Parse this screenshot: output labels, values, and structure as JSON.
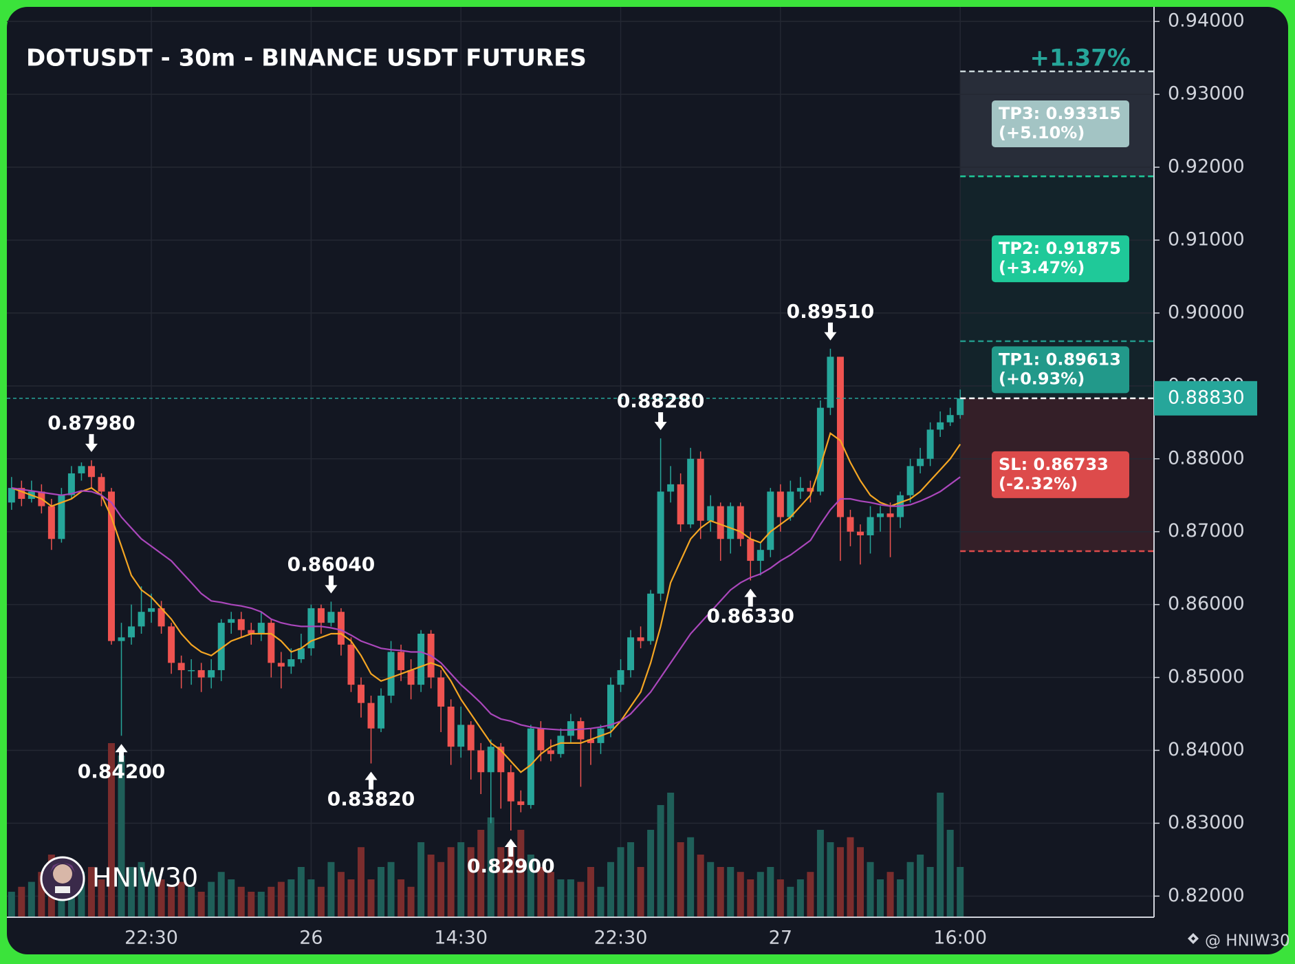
{
  "chart_data": {
    "type": "candlestick",
    "title": "DOTUSDT - 30m - BINANCE USDT FUTURES",
    "categories": [
      null,
      null,
      null,
      null,
      null,
      null,
      null,
      null,
      null,
      null,
      null,
      null,
      null,
      null,
      "22:30",
      null,
      null,
      null,
      null,
      null,
      null,
      null,
      null,
      null,
      null,
      null,
      null,
      null,
      null,
      null,
      "26",
      null,
      null,
      null,
      null,
      null,
      null,
      null,
      null,
      null,
      null,
      null,
      null,
      null,
      null,
      "14:30",
      null,
      null,
      null,
      null,
      null,
      null,
      null,
      null,
      null,
      null,
      null,
      null,
      null,
      null,
      null,
      "22:30",
      null,
      null,
      null,
      null,
      null,
      null,
      null,
      null,
      null,
      null,
      null,
      null,
      null,
      null,
      null,
      "27",
      null,
      null,
      null,
      null,
      null,
      null,
      null,
      null,
      null,
      null,
      null,
      null,
      null,
      null,
      null,
      null,
      null,
      "16:00"
    ],
    "open": [
      0.874,
      0.876,
      0.8745,
      0.8755,
      0.8735,
      0.869,
      0.875,
      0.878,
      0.879,
      0.8775,
      0.8755,
      0.855,
      0.8555,
      0.857,
      0.859,
      0.8595,
      0.857,
      0.852,
      0.851,
      0.851,
      0.85,
      0.851,
      0.8575,
      0.858,
      0.8565,
      0.856,
      0.8575,
      0.852,
      0.8515,
      0.8525,
      0.854,
      0.8595,
      0.8575,
      0.859,
      0.8545,
      0.849,
      0.8465,
      0.843,
      0.8475,
      0.8535,
      0.851,
      0.849,
      0.856,
      0.85,
      0.846,
      0.8405,
      0.8435,
      0.84,
      0.837,
      0.8405,
      0.837,
      0.833,
      0.8325,
      0.843,
      0.84,
      0.8395,
      0.842,
      0.844,
      0.8415,
      0.841,
      0.843,
      0.849,
      0.851,
      0.8555,
      0.855,
      0.8615,
      0.8755,
      0.8765,
      0.871,
      0.88,
      0.8715,
      0.8735,
      0.869,
      0.8735,
      0.869,
      0.866,
      0.8675,
      0.8755,
      0.872,
      0.8755,
      0.876,
      0.8755,
      0.887,
      0.894,
      0.872,
      0.87,
      0.8695,
      0.872,
      0.8725,
      0.872,
      0.875,
      0.879,
      0.88,
      0.884,
      0.885,
      0.886
    ],
    "high": [
      0.8775,
      0.877,
      0.877,
      0.8765,
      0.8745,
      0.876,
      0.879,
      0.8795,
      0.8798,
      0.878,
      0.876,
      0.8575,
      0.86,
      0.8625,
      0.8615,
      0.8605,
      0.8575,
      0.853,
      0.8525,
      0.852,
      0.8525,
      0.858,
      0.859,
      0.859,
      0.8575,
      0.859,
      0.858,
      0.8535,
      0.854,
      0.856,
      0.86,
      0.86,
      0.8604,
      0.8595,
      0.8555,
      0.85,
      0.8475,
      0.8485,
      0.855,
      0.8545,
      0.8525,
      0.8565,
      0.8565,
      0.851,
      0.847,
      0.846,
      0.844,
      0.841,
      0.8415,
      0.841,
      0.838,
      0.8345,
      0.8435,
      0.844,
      0.8415,
      0.843,
      0.845,
      0.8445,
      0.843,
      0.8435,
      0.85,
      0.8525,
      0.8565,
      0.857,
      0.862,
      0.8828,
      0.879,
      0.878,
      0.8815,
      0.881,
      0.875,
      0.874,
      0.874,
      0.874,
      0.87,
      0.8685,
      0.876,
      0.8765,
      0.877,
      0.8775,
      0.877,
      0.888,
      0.8951,
      0.894,
      0.873,
      0.871,
      0.8735,
      0.8735,
      0.874,
      0.8755,
      0.88,
      0.8815,
      0.885,
      0.8865,
      0.887,
      0.8895
    ],
    "low": [
      0.873,
      0.8735,
      0.874,
      0.8725,
      0.8675,
      0.8685,
      0.8745,
      0.877,
      0.876,
      0.8735,
      0.8545,
      0.842,
      0.8545,
      0.856,
      0.8575,
      0.856,
      0.8505,
      0.8485,
      0.849,
      0.848,
      0.8485,
      0.8495,
      0.856,
      0.8555,
      0.8545,
      0.855,
      0.85,
      0.8485,
      0.8505,
      0.852,
      0.853,
      0.856,
      0.857,
      0.853,
      0.848,
      0.8445,
      0.8382,
      0.8425,
      0.8465,
      0.8495,
      0.847,
      0.848,
      0.8485,
      0.8425,
      0.838,
      0.839,
      0.836,
      0.834,
      0.83,
      0.832,
      0.829,
      0.8315,
      0.832,
      0.8385,
      0.8385,
      0.839,
      0.841,
      0.835,
      0.838,
      0.8395,
      0.8418,
      0.848,
      0.85,
      0.854,
      0.8545,
      0.8605,
      0.874,
      0.87,
      0.8705,
      0.869,
      0.87,
      0.866,
      0.867,
      0.868,
      0.8633,
      0.864,
      0.8665,
      0.87,
      0.8715,
      0.8745,
      0.874,
      0.875,
      0.886,
      0.866,
      0.868,
      0.8655,
      0.867,
      0.87,
      0.8665,
      0.8705,
      0.874,
      0.878,
      0.879,
      0.883,
      0.8845,
      0.8855
    ],
    "close": [
      0.876,
      0.8745,
      0.8755,
      0.8735,
      0.869,
      0.875,
      0.878,
      0.879,
      0.8775,
      0.8755,
      0.855,
      0.8555,
      0.857,
      0.859,
      0.8595,
      0.857,
      0.852,
      0.851,
      0.851,
      0.85,
      0.851,
      0.8575,
      0.858,
      0.8565,
      0.856,
      0.8575,
      0.852,
      0.8515,
      0.8525,
      0.854,
      0.8595,
      0.8575,
      0.859,
      0.8545,
      0.849,
      0.8465,
      0.843,
      0.8475,
      0.8535,
      0.851,
      0.849,
      0.856,
      0.85,
      0.846,
      0.8405,
      0.8435,
      0.84,
      0.837,
      0.8405,
      0.837,
      0.833,
      0.8325,
      0.843,
      0.84,
      0.8395,
      0.842,
      0.844,
      0.8415,
      0.841,
      0.843,
      0.849,
      0.851,
      0.8555,
      0.855,
      0.8615,
      0.8755,
      0.8765,
      0.871,
      0.88,
      0.8715,
      0.8735,
      0.869,
      0.8735,
      0.869,
      0.866,
      0.8675,
      0.8755,
      0.872,
      0.8755,
      0.876,
      0.8755,
      0.887,
      0.894,
      0.872,
      0.87,
      0.8695,
      0.872,
      0.8725,
      0.872,
      0.875,
      0.879,
      0.88,
      0.884,
      0.885,
      0.886,
      0.8883
    ],
    "volume": [
      10,
      12,
      14,
      18,
      25,
      15,
      12,
      18,
      20,
      15,
      70,
      65,
      20,
      22,
      18,
      15,
      12,
      14,
      12,
      10,
      14,
      18,
      15,
      12,
      10,
      10,
      12,
      14,
      15,
      20,
      15,
      12,
      22,
      18,
      15,
      28,
      15,
      20,
      22,
      15,
      12,
      30,
      25,
      22,
      28,
      30,
      28,
      35,
      40,
      28,
      30,
      35,
      25,
      20,
      18,
      15,
      15,
      14,
      20,
      12,
      22,
      28,
      30,
      20,
      35,
      45,
      50,
      30,
      32,
      25,
      22,
      20,
      20,
      18,
      15,
      18,
      20,
      15,
      12,
      15,
      18,
      35,
      30,
      28,
      32,
      28,
      22,
      15,
      18,
      15,
      22,
      25,
      20,
      50,
      35,
      20
    ],
    "up_color": "#26a69a",
    "down_color": "#ef5350",
    "volume_up_color": "#1f5f59",
    "volume_down_color": "#7b2d2d",
    "series": [
      {
        "color": "#f5a623",
        "values": [
          0.876,
          0.8755,
          0.875,
          0.8745,
          0.8735,
          0.874,
          0.8745,
          0.8755,
          0.876,
          0.875,
          0.872,
          0.868,
          0.864,
          0.862,
          0.861,
          0.8595,
          0.858,
          0.856,
          0.8545,
          0.8535,
          0.853,
          0.854,
          0.855,
          0.8555,
          0.856,
          0.856,
          0.856,
          0.855,
          0.8535,
          0.854,
          0.855,
          0.8555,
          0.856,
          0.856,
          0.855,
          0.853,
          0.8505,
          0.8495,
          0.85,
          0.8505,
          0.851,
          0.8515,
          0.852,
          0.8515,
          0.8495,
          0.847,
          0.845,
          0.843,
          0.841,
          0.84,
          0.8385,
          0.837,
          0.838,
          0.8395,
          0.8405,
          0.841,
          0.841,
          0.841,
          0.8415,
          0.842,
          0.8425,
          0.844,
          0.846,
          0.848,
          0.852,
          0.857,
          0.863,
          0.866,
          0.869,
          0.8705,
          0.8715,
          0.871,
          0.8705,
          0.87,
          0.869,
          0.8685,
          0.87,
          0.871,
          0.872,
          0.8735,
          0.875,
          0.879,
          0.8835,
          0.8825,
          0.8795,
          0.877,
          0.875,
          0.874,
          0.8735,
          0.874,
          0.8745,
          0.8755,
          0.877,
          0.8785,
          0.88,
          0.882
        ]
      },
      {
        "color": "#ab47bc",
        "values": [
          0.876,
          0.8758,
          0.8756,
          0.8754,
          0.8752,
          0.875,
          0.8752,
          0.8756,
          0.8755,
          0.875,
          0.874,
          0.872,
          0.8705,
          0.869,
          0.868,
          0.867,
          0.866,
          0.8645,
          0.863,
          0.8615,
          0.8605,
          0.8603,
          0.86,
          0.8598,
          0.8595,
          0.859,
          0.858,
          0.8575,
          0.8572,
          0.857,
          0.857,
          0.857,
          0.8568,
          0.8565,
          0.8558,
          0.855,
          0.8545,
          0.854,
          0.8538,
          0.8537,
          0.8535,
          0.8535,
          0.853,
          0.852,
          0.8505,
          0.849,
          0.8478,
          0.8465,
          0.845,
          0.8443,
          0.844,
          0.8435,
          0.8432,
          0.843,
          0.8429,
          0.8428,
          0.8428,
          0.8429,
          0.843,
          0.8432,
          0.8435,
          0.844,
          0.845,
          0.8465,
          0.848,
          0.85,
          0.852,
          0.854,
          0.856,
          0.8575,
          0.859,
          0.8605,
          0.862,
          0.863,
          0.8637,
          0.8642,
          0.865,
          0.866,
          0.8668,
          0.8678,
          0.8688,
          0.871,
          0.873,
          0.8745,
          0.8745,
          0.8742,
          0.874,
          0.8737,
          0.8735,
          0.8735,
          0.8737,
          0.8742,
          0.8748,
          0.8755,
          0.8765,
          0.8775
        ]
      }
    ],
    "annotations": [
      {
        "value": 0.8798,
        "label": "0.87980"
      },
      {
        "value": 0.842,
        "label": "0.84200"
      },
      {
        "value": 0.8604,
        "label": "0.86040"
      },
      {
        "value": 0.8382,
        "label": "0.83820"
      },
      {
        "value": 0.829,
        "label": "0.82900"
      },
      {
        "value": 0.8828,
        "label": "0.88280"
      },
      {
        "value": 0.8633,
        "label": "0.86330"
      },
      {
        "value": 0.8951,
        "label": "0.89510"
      }
    ],
    "position": {
      "change": "+1.37%",
      "change_color": "#26a69a",
      "entry": {
        "value": 0.8883,
        "label": "0.88830",
        "color": "#26a69a"
      },
      "take_profits": [
        {
          "value": 0.89613,
          "label": "TP1: 0.89613",
          "change": "(+0.93%)",
          "color": "#22998a"
        },
        {
          "value": 0.91875,
          "label": "TP2: 0.91875",
          "change": "(+3.47%)",
          "color": "#1fc999"
        },
        {
          "value": 0.93315,
          "label": "TP3: 0.93315",
          "change": "(+5.10%)",
          "color": "#a3c4c4"
        }
      ],
      "stop_loss": {
        "value": 0.86733,
        "label": "SL: 0.86733",
        "change": "(-2.32%)",
        "color": "#dd4b4b"
      }
    },
    "ylim": [
      0.8172,
      0.942
    ],
    "yticks": [
      {
        "value": 0.82,
        "label": "0.82000"
      },
      {
        "value": 0.83,
        "label": "0.83000"
      },
      {
        "value": 0.84,
        "label": "0.84000"
      },
      {
        "value": 0.85,
        "label": "0.85000"
      },
      {
        "value": 0.86,
        "label": "0.86000"
      },
      {
        "value": 0.87,
        "label": "0.87000"
      },
      {
        "value": 0.88,
        "label": "0.88000"
      },
      {
        "value": 0.89,
        "label": "0.89000"
      },
      {
        "value": 0.9,
        "label": "0.90000"
      },
      {
        "value": 0.91,
        "label": "0.91000"
      },
      {
        "value": 0.92,
        "label": "0.92000"
      },
      {
        "value": 0.93,
        "label": "0.93000"
      },
      {
        "value": 0.94,
        "label": "0.94000"
      }
    ],
    "grid": true,
    "watermark": "HNIW30",
    "credit": "@ HNIW30"
  }
}
